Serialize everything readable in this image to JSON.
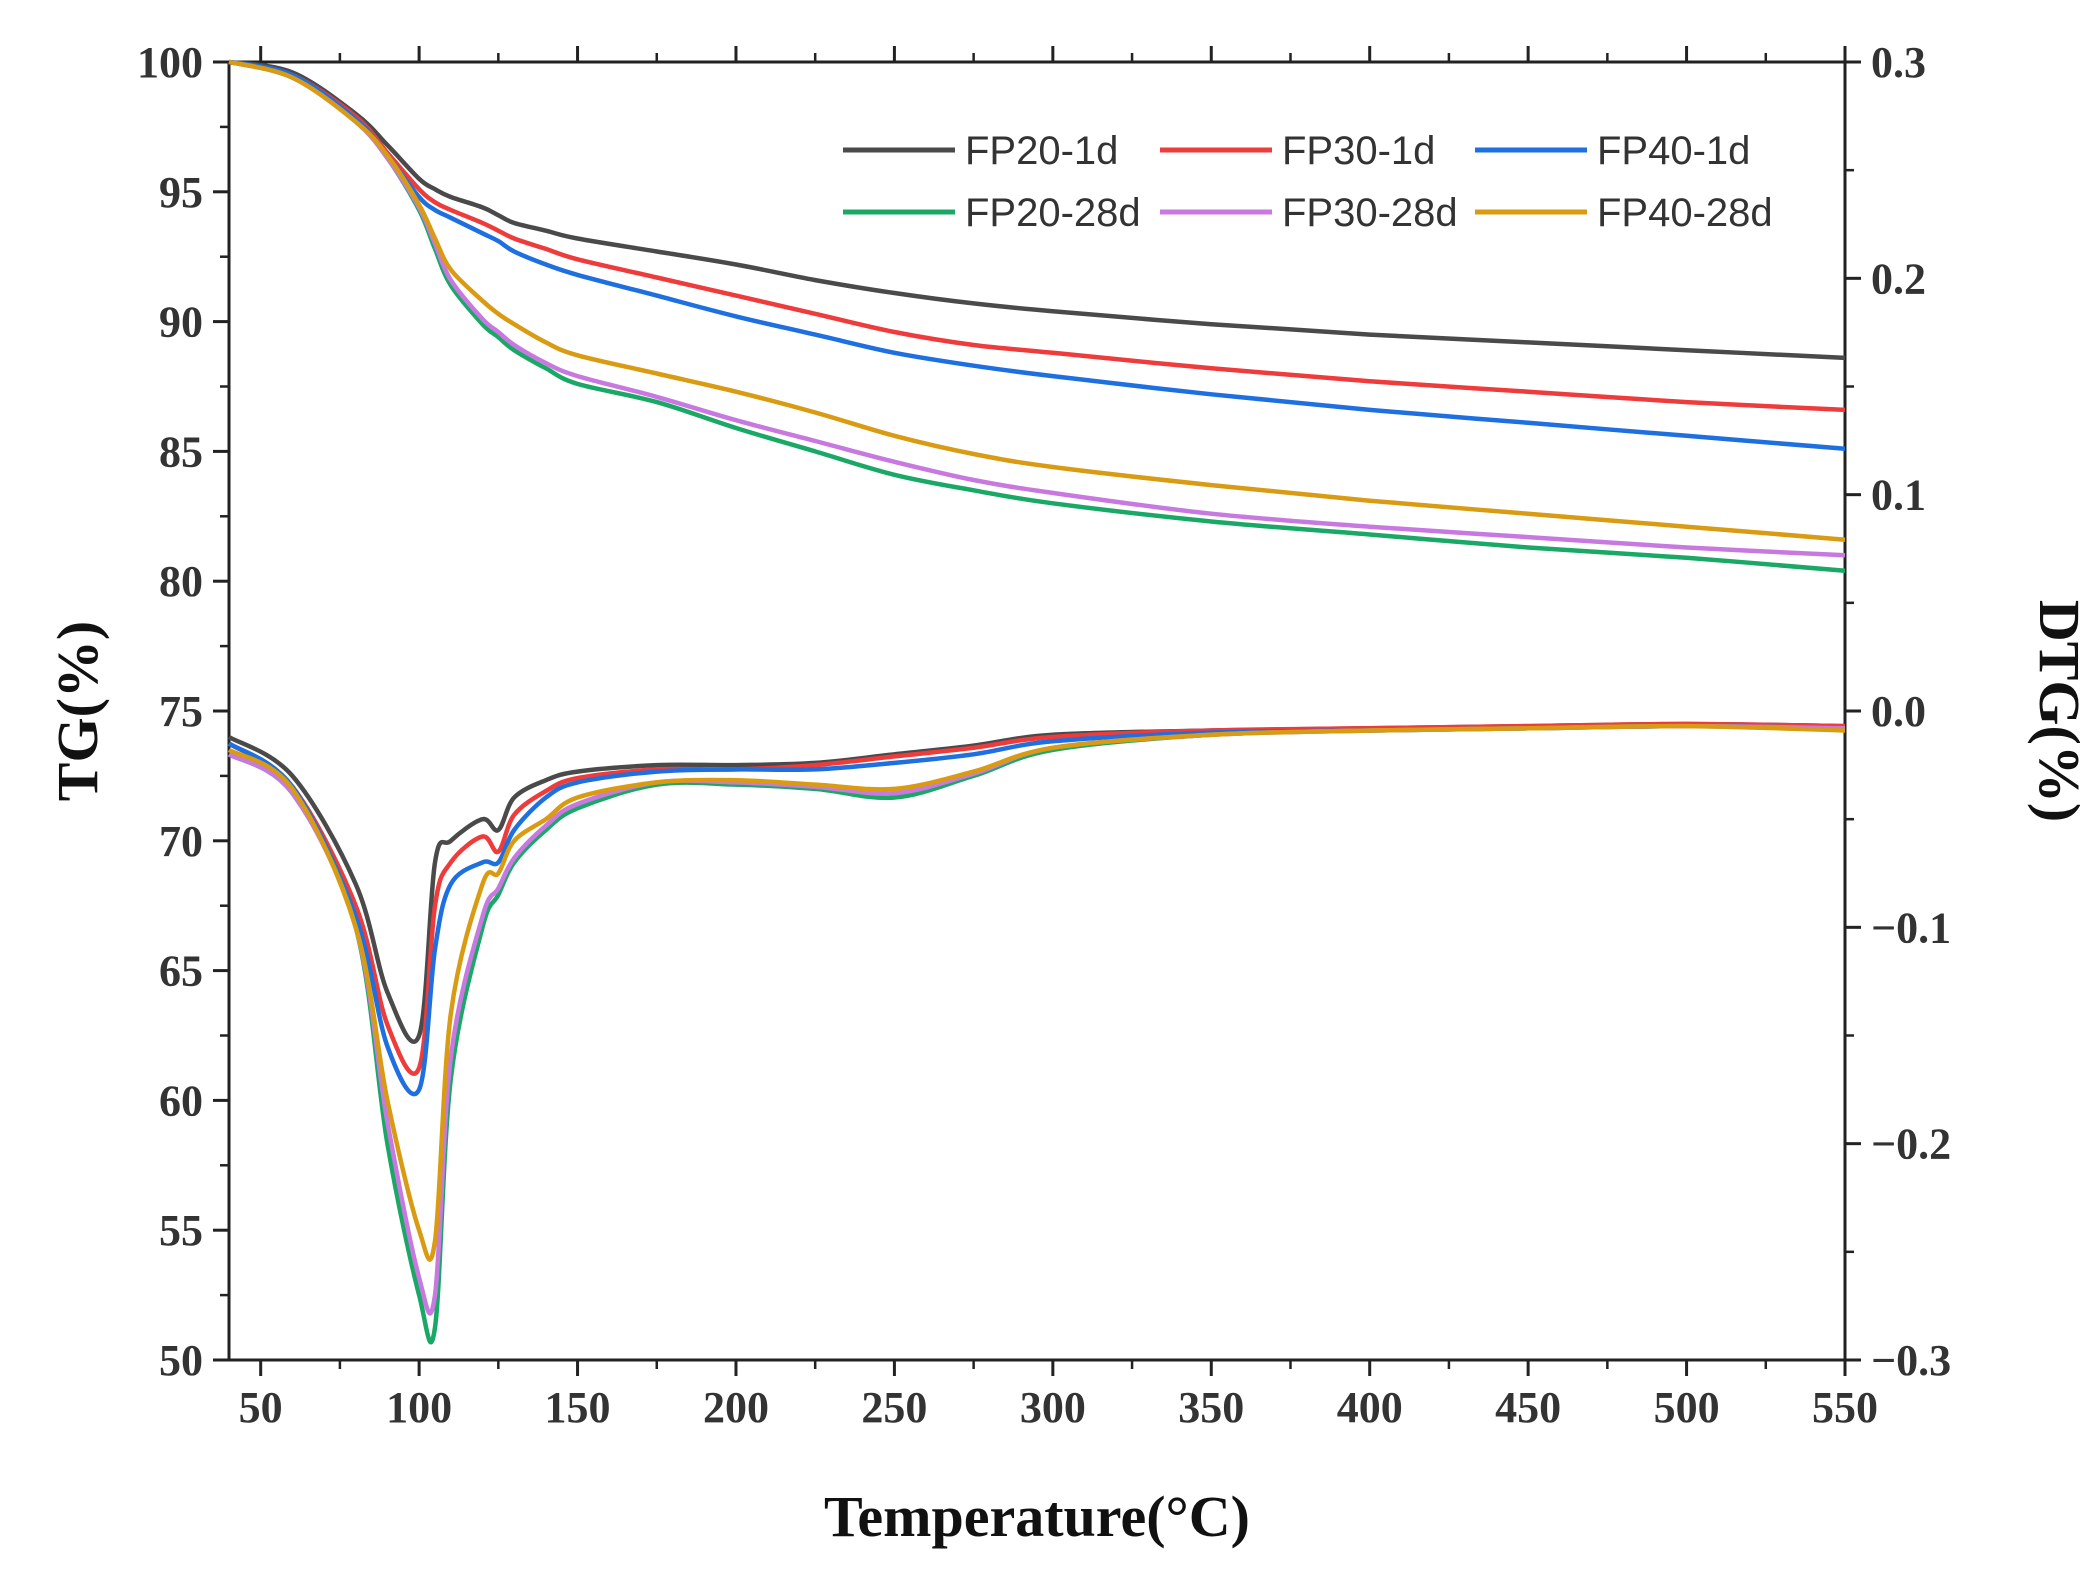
{
  "chart_data": {
    "type": "line",
    "title": "",
    "xlabel": "Temperature(°C)",
    "ylabel_left": "TG(%)",
    "ylabel_right": "DTG(%)",
    "xlim": [
      40,
      550
    ],
    "ylim_left": [
      50,
      100
    ],
    "ylim_right": [
      -0.3,
      0.3
    ],
    "x_ticks": [
      50,
      100,
      150,
      200,
      250,
      300,
      350,
      400,
      450,
      500,
      550
    ],
    "y_ticks_left": [
      50,
      55,
      60,
      65,
      70,
      75,
      80,
      85,
      90,
      95,
      100
    ],
    "y_ticks_right": [
      -0.3,
      -0.2,
      -0.1,
      0.0,
      0.1,
      0.2,
      0.3
    ],
    "y_tick_labels_right": [
      "−0.3",
      "−0.2",
      "−0.1",
      "0.0",
      "0.1",
      "0.2",
      "0.3"
    ],
    "grid": false,
    "legend_position": "top-right",
    "x_samples": [
      40,
      60,
      80,
      90,
      100,
      105,
      110,
      120,
      125,
      130,
      140,
      150,
      175,
      200,
      225,
      250,
      275,
      300,
      350,
      400,
      450,
      500,
      550
    ],
    "series": [
      {
        "name": "FP20-1d",
        "color": "#4a4a4a",
        "tg": [
          100,
          99.6,
          98.0,
          96.8,
          95.5,
          95.1,
          94.8,
          94.4,
          94.1,
          93.8,
          93.5,
          93.2,
          92.7,
          92.2,
          91.6,
          91.1,
          90.7,
          90.4,
          89.9,
          89.5,
          89.2,
          88.9,
          88.6
        ],
        "dtg": [
          -0.012,
          -0.03,
          -0.08,
          -0.13,
          -0.15,
          -0.07,
          -0.06,
          -0.05,
          -0.055,
          -0.04,
          -0.032,
          -0.028,
          -0.025,
          -0.025,
          -0.024,
          -0.02,
          -0.016,
          -0.011,
          -0.009,
          -0.008,
          -0.007,
          -0.006,
          -0.007
        ]
      },
      {
        "name": "FP30-1d",
        "color": "#ee3b3b",
        "tg": [
          100,
          99.5,
          97.9,
          96.5,
          95.1,
          94.6,
          94.3,
          93.8,
          93.5,
          93.2,
          92.8,
          92.4,
          91.7,
          91.0,
          90.3,
          89.6,
          89.1,
          88.8,
          88.2,
          87.7,
          87.3,
          86.9,
          86.6
        ],
        "dtg": [
          -0.015,
          -0.035,
          -0.09,
          -0.145,
          -0.165,
          -0.09,
          -0.07,
          -0.058,
          -0.065,
          -0.048,
          -0.037,
          -0.031,
          -0.027,
          -0.027,
          -0.025,
          -0.021,
          -0.017,
          -0.012,
          -0.009,
          -0.008,
          -0.007,
          -0.006,
          -0.007
        ]
      },
      {
        "name": "FP40-1d",
        "color": "#1e6fe0",
        "tg": [
          100,
          99.5,
          97.8,
          96.4,
          94.8,
          94.3,
          94.0,
          93.4,
          93.1,
          92.7,
          92.2,
          91.8,
          91.0,
          90.2,
          89.5,
          88.8,
          88.3,
          87.9,
          87.2,
          86.6,
          86.1,
          85.6,
          85.1
        ],
        "dtg": [
          -0.015,
          -0.035,
          -0.095,
          -0.155,
          -0.175,
          -0.11,
          -0.08,
          -0.07,
          -0.07,
          -0.055,
          -0.04,
          -0.033,
          -0.028,
          -0.027,
          -0.027,
          -0.024,
          -0.02,
          -0.014,
          -0.01,
          -0.009,
          -0.008,
          -0.007,
          -0.008
        ]
      },
      {
        "name": "FP20-28d",
        "color": "#1aa866",
        "tg": [
          100,
          99.4,
          97.7,
          96.3,
          94.3,
          92.8,
          91.4,
          89.9,
          89.4,
          88.9,
          88.2,
          87.6,
          86.9,
          85.9,
          85.0,
          84.1,
          83.5,
          83.0,
          82.3,
          81.8,
          81.3,
          80.9,
          80.4
        ],
        "dtg": [
          -0.02,
          -0.038,
          -0.1,
          -0.2,
          -0.27,
          -0.285,
          -0.17,
          -0.1,
          -0.085,
          -0.07,
          -0.055,
          -0.045,
          -0.034,
          -0.034,
          -0.036,
          -0.04,
          -0.03,
          -0.018,
          -0.011,
          -0.009,
          -0.008,
          -0.007,
          -0.008
        ]
      },
      {
        "name": "FP30-28d",
        "color": "#c879e0",
        "tg": [
          100,
          99.4,
          97.7,
          96.3,
          94.4,
          93.0,
          91.6,
          90.1,
          89.6,
          89.1,
          88.4,
          87.9,
          87.1,
          86.2,
          85.4,
          84.6,
          83.9,
          83.4,
          82.6,
          82.1,
          81.7,
          81.3,
          81.0
        ],
        "dtg": [
          -0.02,
          -0.038,
          -0.1,
          -0.19,
          -0.262,
          -0.27,
          -0.16,
          -0.095,
          -0.082,
          -0.068,
          -0.053,
          -0.043,
          -0.033,
          -0.033,
          -0.035,
          -0.038,
          -0.029,
          -0.017,
          -0.011,
          -0.009,
          -0.008,
          -0.007,
          -0.008
        ]
      },
      {
        "name": "FP40-28d",
        "color": "#d89b12",
        "tg": [
          100,
          99.4,
          97.7,
          96.4,
          94.5,
          93.2,
          92.0,
          90.8,
          90.3,
          89.9,
          89.2,
          88.7,
          88.0,
          87.3,
          86.5,
          85.6,
          84.9,
          84.4,
          83.7,
          83.1,
          82.6,
          82.1,
          81.6
        ],
        "dtg": [
          -0.018,
          -0.036,
          -0.1,
          -0.18,
          -0.24,
          -0.245,
          -0.14,
          -0.08,
          -0.075,
          -0.06,
          -0.05,
          -0.04,
          -0.033,
          -0.032,
          -0.034,
          -0.036,
          -0.028,
          -0.017,
          -0.011,
          -0.009,
          -0.008,
          -0.007,
          -0.009
        ]
      }
    ]
  }
}
